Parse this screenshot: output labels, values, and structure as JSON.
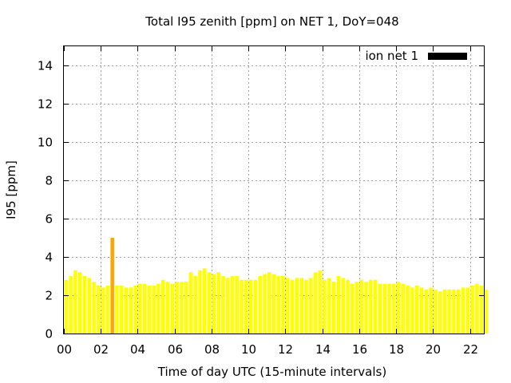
{
  "chart_data": {
    "type": "bar",
    "title": "Total I95 zenith [ppm] on NET 1, DoY=048",
    "xlabel": "Time of day UTC (15-minute intervals)",
    "ylabel": "I95 [ppm]",
    "xlim": [
      0,
      22.75
    ],
    "ylim": [
      0,
      15
    ],
    "x_ticks": [
      "00",
      "02",
      "04",
      "06",
      "08",
      "10",
      "12",
      "14",
      "16",
      "18",
      "20",
      "22"
    ],
    "y_ticks": [
      "0",
      "2",
      "4",
      "6",
      "8",
      "10",
      "12",
      "14"
    ],
    "grid": true,
    "legend_position": "top-right",
    "series": [
      {
        "name": "ion net 1",
        "color": "#000000",
        "bar_color": "#ffff00",
        "highlight_color": "#ffa500",
        "highlight_index": 10,
        "interval_hours": 0.25,
        "values": [
          2.8,
          3.0,
          3.3,
          3.2,
          3.0,
          2.9,
          2.7,
          2.5,
          2.4,
          2.5,
          5.0,
          2.5,
          2.5,
          2.4,
          2.4,
          2.5,
          2.6,
          2.6,
          2.5,
          2.5,
          2.6,
          2.8,
          2.7,
          2.6,
          2.7,
          2.7,
          2.7,
          3.2,
          3.0,
          3.3,
          3.4,
          3.2,
          3.1,
          3.2,
          3.0,
          2.9,
          3.0,
          3.0,
          2.8,
          2.8,
          2.8,
          2.8,
          3.0,
          3.1,
          3.2,
          3.1,
          3.0,
          3.0,
          2.9,
          2.8,
          2.9,
          2.9,
          2.8,
          2.9,
          3.2,
          3.3,
          2.8,
          2.9,
          2.7,
          3.0,
          2.9,
          2.8,
          2.6,
          2.7,
          2.8,
          2.7,
          2.8,
          2.8,
          2.6,
          2.6,
          2.6,
          2.6,
          2.7,
          2.6,
          2.5,
          2.4,
          2.5,
          2.4,
          2.3,
          2.4,
          2.3,
          2.2,
          2.3,
          2.3,
          2.3,
          2.3,
          2.4,
          2.4,
          2.5,
          2.6,
          2.5,
          2.3
        ]
      }
    ]
  }
}
